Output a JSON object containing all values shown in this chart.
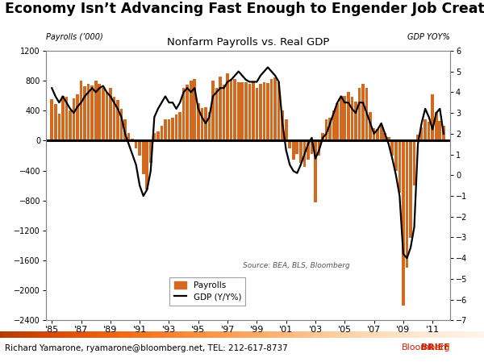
{
  "title": "Nonfarm Payrolls vs. Real GDP",
  "super_title": "Economy Isn’t Advancing Fast Enough to Engender Job Creation",
  "ylabel_left": "Payrolls (’000)",
  "ylabel_right": "GDP YOY%",
  "source_text": "Source: BEA, BLS, Bloomberg",
  "footer_text": "Richard Yamarone, ryamarone@bloomberg.net, TEL: 212-617-8737",
  "bloomberg_text": "Bloomberg",
  "bloomberg_bold": "BRIEF",
  "bar_color": "#D2691E",
  "line_color": "#000000",
  "ylim_left": [
    -2400,
    1200
  ],
  "ylim_right": [
    -7,
    6
  ],
  "yticks_left": [
    -2400,
    -2000,
    -1600,
    -1200,
    -800,
    -400,
    0,
    400,
    800,
    1200
  ],
  "yticks_right": [
    -7,
    -6,
    -5,
    -4,
    -3,
    -2,
    -1,
    0,
    1,
    2,
    3,
    4,
    5,
    6
  ],
  "xtick_labels": [
    "'85",
    "'87",
    "'89",
    "'91",
    "'93",
    "'95",
    "'97",
    "'99",
    "'01",
    "'03",
    "'05",
    "'07",
    "'09",
    "'11"
  ],
  "xtick_positions": [
    1985,
    1987,
    1989,
    1991,
    1993,
    1995,
    1997,
    1999,
    2001,
    2003,
    2005,
    2007,
    2009,
    2011
  ],
  "quarters": [
    1985.0,
    1985.25,
    1985.5,
    1985.75,
    1986.0,
    1986.25,
    1986.5,
    1986.75,
    1987.0,
    1987.25,
    1987.5,
    1987.75,
    1988.0,
    1988.25,
    1988.5,
    1988.75,
    1989.0,
    1989.25,
    1989.5,
    1989.75,
    1990.0,
    1990.25,
    1990.5,
    1990.75,
    1991.0,
    1991.25,
    1991.5,
    1991.75,
    1992.0,
    1992.25,
    1992.5,
    1992.75,
    1993.0,
    1993.25,
    1993.5,
    1993.75,
    1994.0,
    1994.25,
    1994.5,
    1994.75,
    1995.0,
    1995.25,
    1995.5,
    1995.75,
    1996.0,
    1996.25,
    1996.5,
    1996.75,
    1997.0,
    1997.25,
    1997.5,
    1997.75,
    1998.0,
    1998.25,
    1998.5,
    1998.75,
    1999.0,
    1999.25,
    1999.5,
    1999.75,
    2000.0,
    2000.25,
    2000.5,
    2000.75,
    2001.0,
    2001.25,
    2001.5,
    2001.75,
    2002.0,
    2002.25,
    2002.5,
    2002.75,
    2003.0,
    2003.25,
    2003.5,
    2003.75,
    2004.0,
    2004.25,
    2004.5,
    2004.75,
    2005.0,
    2005.25,
    2005.5,
    2005.75,
    2006.0,
    2006.25,
    2006.5,
    2006.75,
    2007.0,
    2007.25,
    2007.5,
    2007.75,
    2008.0,
    2008.25,
    2008.5,
    2008.75,
    2009.0,
    2009.25,
    2009.5,
    2009.75,
    2010.0,
    2010.25,
    2010.5,
    2010.75,
    2011.0,
    2011.25,
    2011.5,
    2011.75
  ],
  "payrolls": [
    550,
    490,
    360,
    600,
    580,
    400,
    560,
    620,
    800,
    720,
    760,
    740,
    800,
    760,
    700,
    640,
    700,
    580,
    540,
    420,
    280,
    100,
    30,
    -100,
    -200,
    -450,
    -650,
    -300,
    100,
    120,
    200,
    280,
    280,
    300,
    350,
    380,
    700,
    750,
    800,
    820,
    500,
    430,
    440,
    380,
    800,
    700,
    850,
    750,
    900,
    820,
    820,
    780,
    780,
    780,
    760,
    780,
    700,
    760,
    780,
    770,
    820,
    840,
    780,
    400,
    280,
    -100,
    -250,
    -180,
    -300,
    -350,
    -250,
    -180,
    -820,
    -200,
    100,
    280,
    300,
    400,
    500,
    600,
    600,
    650,
    580,
    520,
    700,
    760,
    700,
    380,
    160,
    150,
    200,
    100,
    50,
    -200,
    -400,
    -700,
    -2200,
    -1700,
    -1300,
    -600,
    80,
    180,
    280,
    250,
    620,
    380,
    260,
    200
  ],
  "gdp_yoy": [
    4.2,
    3.8,
    3.5,
    3.8,
    3.5,
    3.2,
    3.0,
    3.3,
    3.5,
    3.8,
    4.0,
    4.2,
    4.0,
    4.2,
    4.3,
    4.0,
    3.8,
    3.5,
    3.2,
    2.8,
    2.0,
    1.5,
    1.0,
    0.5,
    -0.5,
    -1.0,
    -0.7,
    0.2,
    2.8,
    3.2,
    3.5,
    3.8,
    3.5,
    3.5,
    3.2,
    3.5,
    4.0,
    4.2,
    4.0,
    4.2,
    3.2,
    2.8,
    2.5,
    2.8,
    3.8,
    4.0,
    4.2,
    4.2,
    4.5,
    4.6,
    4.8,
    5.0,
    4.8,
    4.6,
    4.5,
    4.5,
    4.5,
    4.8,
    5.0,
    5.2,
    5.0,
    4.8,
    4.5,
    2.5,
    1.2,
    0.5,
    0.2,
    0.1,
    0.5,
    1.0,
    1.5,
    1.8,
    0.8,
    1.2,
    1.8,
    2.0,
    2.5,
    3.0,
    3.5,
    3.8,
    3.5,
    3.5,
    3.2,
    3.0,
    3.5,
    3.5,
    3.0,
    2.5,
    2.0,
    2.2,
    2.5,
    2.0,
    1.5,
    0.8,
    0.0,
    -1.0,
    -3.8,
    -4.0,
    -3.5,
    -2.5,
    1.5,
    2.5,
    3.2,
    2.8,
    2.2,
    3.0,
    3.2,
    2.0
  ]
}
